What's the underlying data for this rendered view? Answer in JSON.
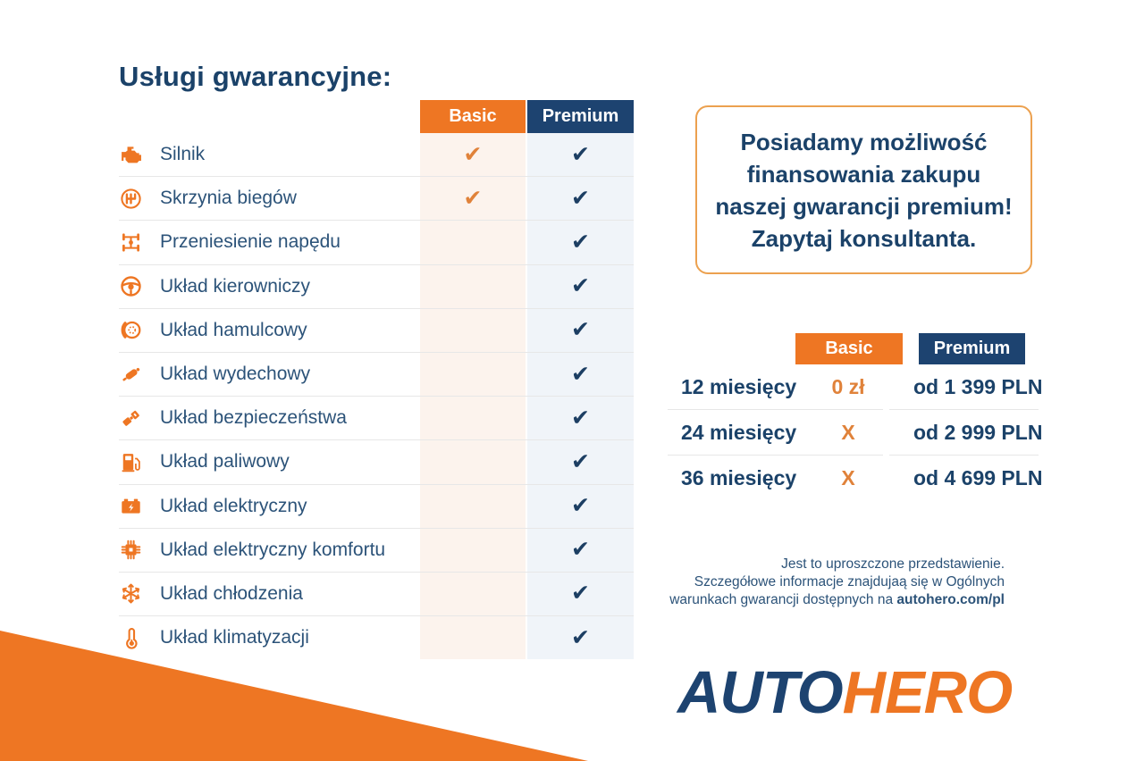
{
  "title": "Usługi gwarancyjne:",
  "colors": {
    "orange": "#EE7623",
    "navy": "#1D4370",
    "navy_text": "#1B4269",
    "row_text": "#2C5379",
    "basic_column_bg": "#FCF3ED",
    "premium_column_bg": "#F0F4F9",
    "promo_border": "#ECA14F"
  },
  "comparison": {
    "columns": [
      {
        "label": "Basic"
      },
      {
        "label": "Premium"
      }
    ],
    "check_mark": "✔",
    "rows": [
      {
        "label": "Silnik",
        "icon": "engine-icon",
        "basic": true,
        "premium": true
      },
      {
        "label": "Skrzynia biegów",
        "icon": "gearbox-icon",
        "basic": true,
        "premium": true
      },
      {
        "label": "Przeniesienie napędu",
        "icon": "drivetrain-icon",
        "basic": false,
        "premium": true
      },
      {
        "label": "Układ kierowniczy",
        "icon": "steering-wheel-icon",
        "basic": false,
        "premium": true
      },
      {
        "label": "Układ hamulcowy",
        "icon": "brake-disc-icon",
        "basic": false,
        "premium": true
      },
      {
        "label": "Układ wydechowy",
        "icon": "exhaust-icon",
        "basic": false,
        "premium": true
      },
      {
        "label": "Układ bezpieczeństwa",
        "icon": "seatbelt-icon",
        "basic": false,
        "premium": true
      },
      {
        "label": "Układ paliwowy",
        "icon": "fuel-pump-icon",
        "basic": false,
        "premium": true
      },
      {
        "label": "Układ elektryczny",
        "icon": "battery-icon",
        "basic": false,
        "premium": true
      },
      {
        "label": "Układ elektryczny komfortu",
        "icon": "chip-icon",
        "basic": false,
        "premium": true
      },
      {
        "label": "Układ chłodzenia",
        "icon": "snowflake-icon",
        "basic": false,
        "premium": true
      },
      {
        "label": "Układ klimatyzacji",
        "icon": "thermometer-icon",
        "basic": false,
        "premium": true
      }
    ]
  },
  "promo_box": {
    "lines": [
      "Posiadamy możliwość",
      "finansowania zakupu",
      "naszej gwarancji premium!",
      "Zapytaj konsultanta."
    ]
  },
  "pricing": {
    "columns": [
      {
        "label": "Basic"
      },
      {
        "label": "Premium"
      }
    ],
    "rows": [
      {
        "period": "12 miesięcy",
        "basic": "0 zł",
        "premium": "od 1 399 PLN"
      },
      {
        "period": "24 miesięcy",
        "basic": "X",
        "premium": "od 2 999 PLN"
      },
      {
        "period": "36 miesięcy",
        "basic": "X",
        "premium": "od 4 699 PLN"
      }
    ]
  },
  "disclaimer": {
    "line1": "Jest to uproszczone przedstawienie.",
    "line2": "Szczegółowe informacje znajdujaą się w Ogólnych",
    "line3_text": "warunkach gwarancji dostępnych na ",
    "line3_bold": "autohero.com/pl"
  },
  "logo": {
    "auto": "AUTO",
    "hero": "HERO"
  }
}
